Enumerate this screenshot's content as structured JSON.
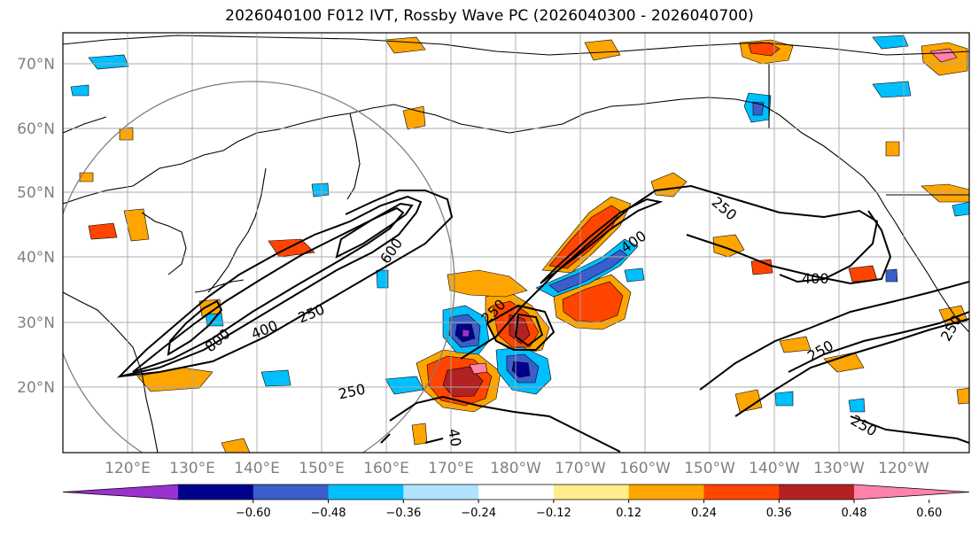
{
  "title": "2026040100 F012 IVT, Rossby Wave PC (2026040300 - 2026040700)",
  "map": {
    "lat_labels": [
      "70°N",
      "60°N",
      "50°N",
      "40°N",
      "30°N",
      "20°N"
    ],
    "lon_labels": [
      "120°E",
      "130°E",
      "140°E",
      "150°E",
      "160°E",
      "170°E",
      "180°W",
      "170°W",
      "160°W",
      "150°W",
      "140°W",
      "130°W",
      "120°W"
    ],
    "contour_labels": [
      "600",
      "400",
      "250",
      "250",
      "800",
      "250",
      "400",
      "250",
      "400",
      "250",
      "40",
      "250",
      "250"
    ],
    "gridlines": true
  },
  "colorbar": {
    "tick_labels": [
      "−0.60",
      "−0.48",
      "−0.36",
      "−0.24",
      "−0.12",
      "0.12",
      "0.24",
      "0.36",
      "0.48",
      "0.60"
    ],
    "colors": [
      "#9a32cd",
      "#00008b",
      "#3a5fcd",
      "#00bfff",
      "#b0e2ff",
      "#ffffff",
      "#ffec8b",
      "#ffa500",
      "#ff4500",
      "#b22222",
      "#ff82ab"
    ]
  },
  "colors": {
    "negative_strong": "#00008b",
    "negative_mid": "#3a5fcd",
    "negative_light": "#00bfff",
    "positive_light": "#ffa500",
    "positive_mid": "#ff4500",
    "positive_strong": "#b22222"
  }
}
